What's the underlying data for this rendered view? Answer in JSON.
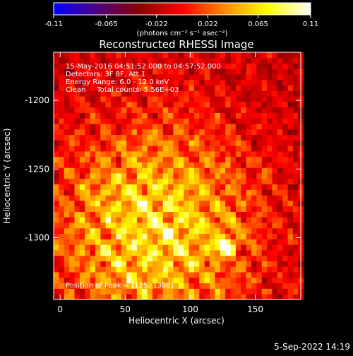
{
  "colorbar": {
    "tick_labels": [
      "-0.11",
      "-0.065",
      "-0.022",
      "0.022",
      "0.065",
      "0.11"
    ],
    "units_label": "(photons cm⁻² s⁻¹ asec⁻²)"
  },
  "plot": {
    "title": "Reconstructed RHESSI Image",
    "annotations": [
      "15-May-2016 04:51:52.000 to 04:57:52.000",
      "Detectors: 3F 8F, Att 1",
      "Energy Range: 6.0 - 12.0 keV",
      "Clean     Total counts: 5.56E+03"
    ],
    "peak_label": "Position of Peak = [125,-1308]"
  },
  "footer": {
    "timestamp": "5-Sep-2022 14:19"
  },
  "chart_data": {
    "type": "heatmap",
    "title": "Reconstructed RHESSI Image",
    "xlabel": "Heliocentric X (arcsec)",
    "ylabel": "Heliocentric Y (arcsec)",
    "xlim": [
      -5,
      185
    ],
    "ylim": [
      -1345,
      -1165
    ],
    "x_ticks": [
      0,
      50,
      100,
      150
    ],
    "y_ticks": [
      -1200,
      -1250,
      -1300
    ],
    "colorbar_range": [
      -0.11,
      0.11
    ],
    "colorbar_ticks": [
      -0.11,
      -0.065,
      -0.022,
      0.022,
      0.065,
      0.11
    ],
    "peak_position": [
      125,
      -1308
    ],
    "pixel_size_arcsec": 4,
    "colormap_stops": [
      "#0000ff",
      "#4b0082",
      "#8b0000",
      "#ff0000",
      "#ff8c00",
      "#ffff00",
      "#ffffff"
    ]
  }
}
